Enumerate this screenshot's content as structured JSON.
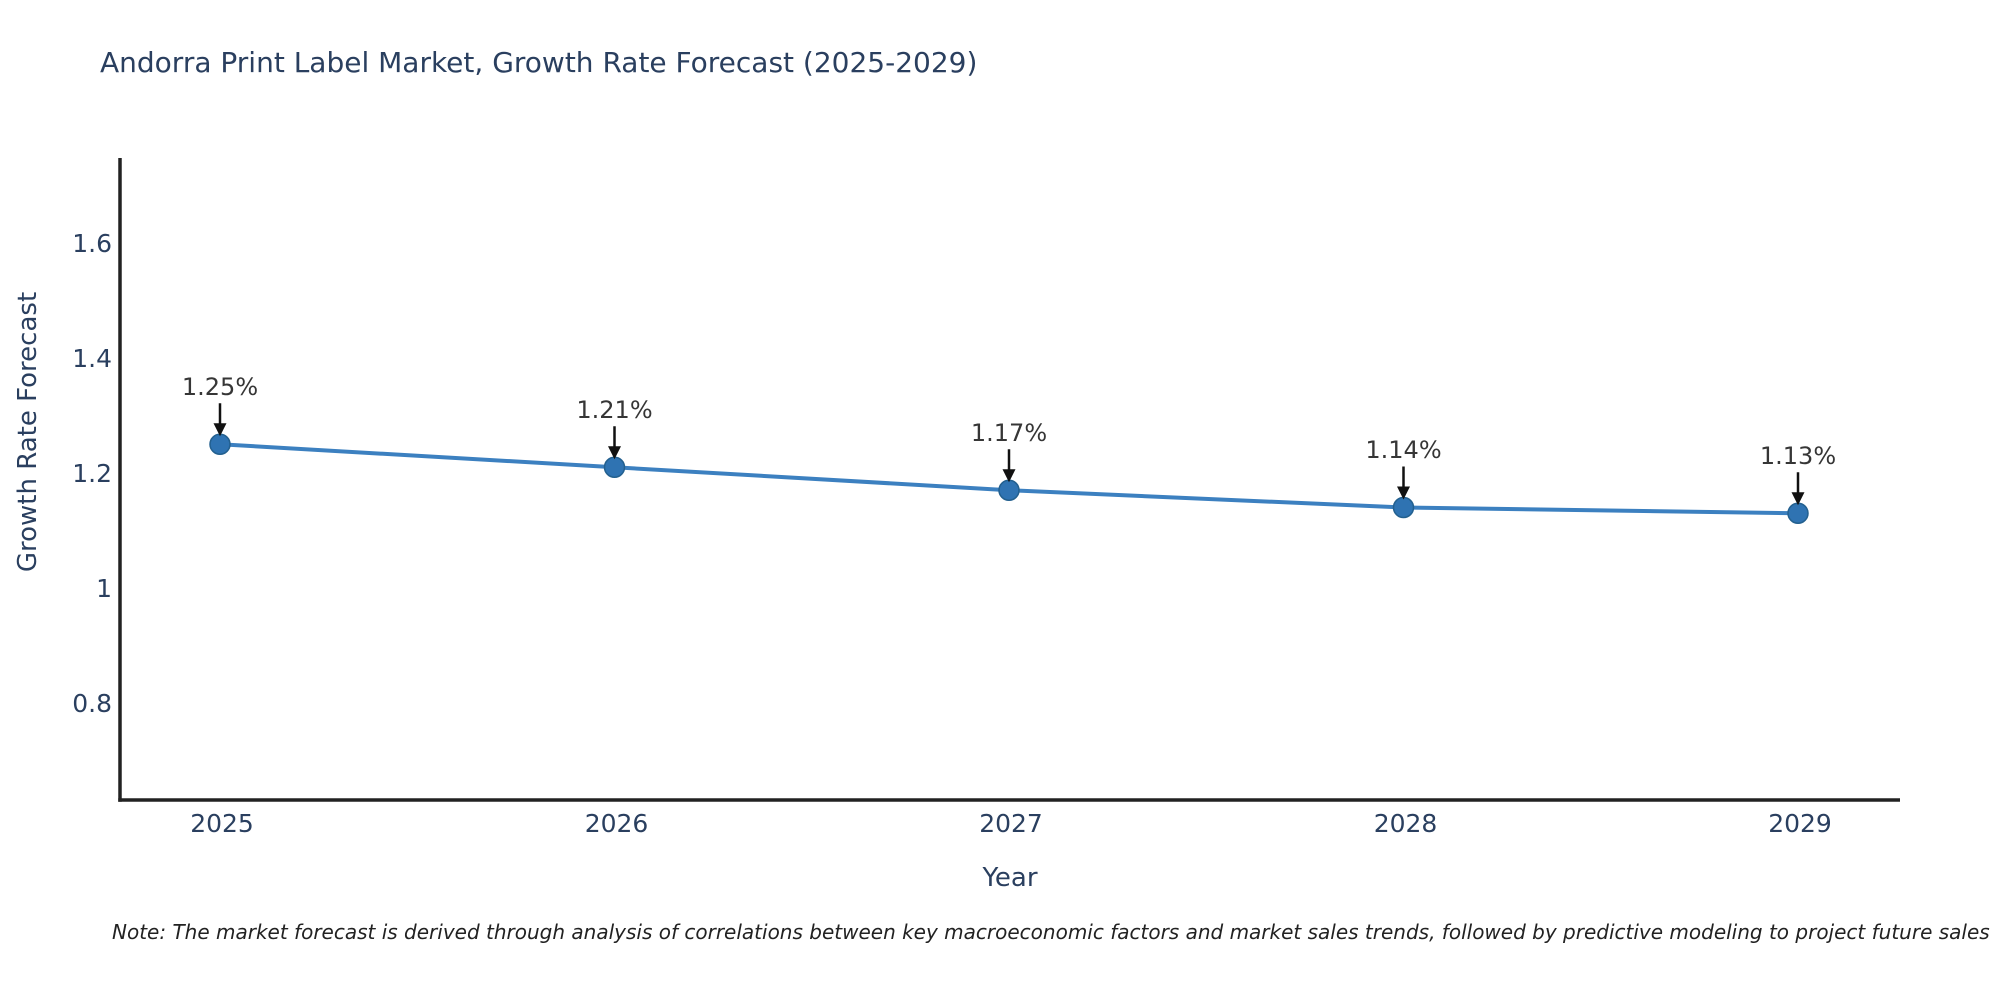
{
  "title": "Andorra Print Label Market, Growth Rate Forecast (2025-2029)",
  "note": "Note: The market forecast is derived through analysis of correlations between key macroeconomic factors and market sales trends, followed by predictive modeling to project future sales",
  "chart_data": {
    "type": "line",
    "title": "Andorra Print Label Market, Growth Rate Forecast (2025-2029)",
    "xlabel": "Year",
    "ylabel": "Growth Rate Forecast",
    "x": [
      2025,
      2026,
      2027,
      2028,
      2029
    ],
    "values": [
      1.25,
      1.21,
      1.17,
      1.14,
      1.13
    ],
    "point_labels": [
      "1.25%",
      "1.21%",
      "1.17%",
      "1.14%",
      "1.13%"
    ],
    "x_tick_labels": [
      "2025",
      "2026",
      "2027",
      "2028",
      "2029"
    ],
    "y_ticks": [
      1.6,
      1.4,
      1.2,
      1.0,
      0.8
    ],
    "y_tick_labels": [
      "1.6",
      "1.4",
      "1.2",
      "1",
      "0.8"
    ],
    "xlim": [
      2024.75,
      2029.26
    ],
    "ylim": [
      0.63,
      1.75
    ],
    "grid": false,
    "legend": "none",
    "line_color": "#3c80c0",
    "marker_color": "#2f73b2",
    "marker_edge_color": "#23608f",
    "axis_color": "#222222",
    "tick_label_color": "#2a3f5f",
    "axis_title_color": "#2a3f5f",
    "annotation_text_color": "#363636",
    "annotation_arrow_color": "#111111"
  }
}
